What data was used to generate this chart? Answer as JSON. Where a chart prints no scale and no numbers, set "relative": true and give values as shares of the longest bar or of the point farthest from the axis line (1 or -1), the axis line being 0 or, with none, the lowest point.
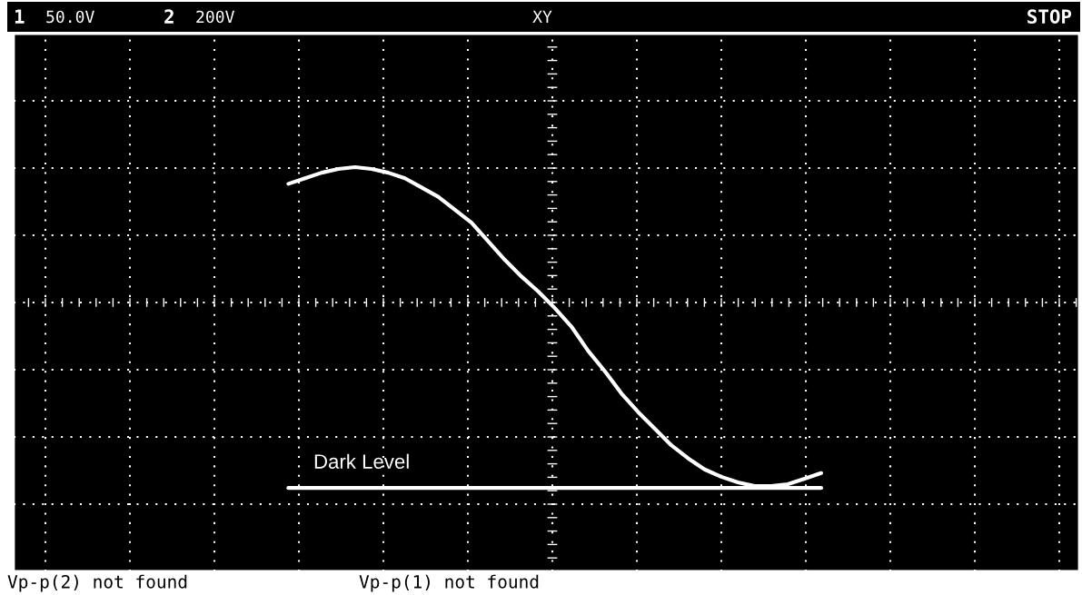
{
  "chart_data": {
    "type": "line",
    "relative": true,
    "grid": true,
    "legend": false,
    "categories": [
      null,
      null,
      null,
      null,
      null,
      null,
      null,
      null,
      null,
      null,
      null,
      null,
      null,
      null,
      null,
      null,
      null,
      null,
      null,
      null,
      null,
      null,
      null,
      null,
      null,
      null,
      null,
      null,
      null,
      null,
      null,
      null,
      null,
      null,
      null,
      null,
      null,
      null,
      null,
      null,
      null,
      null,
      null,
      null,
      null,
      null,
      null,
      null,
      null,
      null,
      null,
      null,
      null,
      null,
      null,
      null,
      null,
      null,
      null,
      null,
      null,
      null,
      null,
      null
    ],
    "series": [
      {
        "color": "#ffffff",
        "values": [
          null,
          null,
          null,
          null,
          null,
          null,
          null,
          null,
          null,
          null,
          null,
          null,
          null,
          null,
          null,
          null,
          0.64,
          0.67,
          0.7,
          0.72,
          0.73,
          0.72,
          0.7,
          0.67,
          0.62,
          0.57,
          0.5,
          0.43,
          0.33,
          0.23,
          0.14,
          0.06,
          -0.03,
          -0.13,
          -0.26,
          -0.37,
          -0.49,
          -0.59,
          -0.68,
          -0.77,
          -0.84,
          -0.9,
          -0.94,
          -0.97,
          -0.99,
          -0.99,
          -0.98,
          -0.95,
          -0.92,
          null,
          null,
          null,
          null,
          null,
          null,
          null,
          null,
          null,
          null,
          null,
          null,
          null,
          null,
          null
        ]
      },
      {
        "color": "#ffffff",
        "values": [
          null,
          null,
          null,
          null,
          null,
          null,
          null,
          null,
          null,
          null,
          null,
          null,
          null,
          null,
          null,
          null,
          -1,
          -1,
          -1,
          -1,
          -1,
          -1,
          -1,
          -1,
          -1,
          -1,
          -1,
          -1,
          -1,
          -1,
          -1,
          -1,
          -1,
          -1,
          -1,
          -1,
          -1,
          -1,
          -1,
          -1,
          -1,
          -1,
          -1,
          -1,
          -1,
          -1,
          -1,
          -1,
          -1,
          null,
          null,
          null,
          null,
          null,
          null,
          null,
          null,
          null,
          null,
          null,
          null,
          null,
          null,
          null
        ]
      }
    ],
    "annotations": [
      "1",
      "50.0V",
      "2",
      "200V",
      "XY",
      "STOP",
      "Vp-p(2) not found",
      "Vp-p(1) not found",
      "Dark Level"
    ]
  }
}
